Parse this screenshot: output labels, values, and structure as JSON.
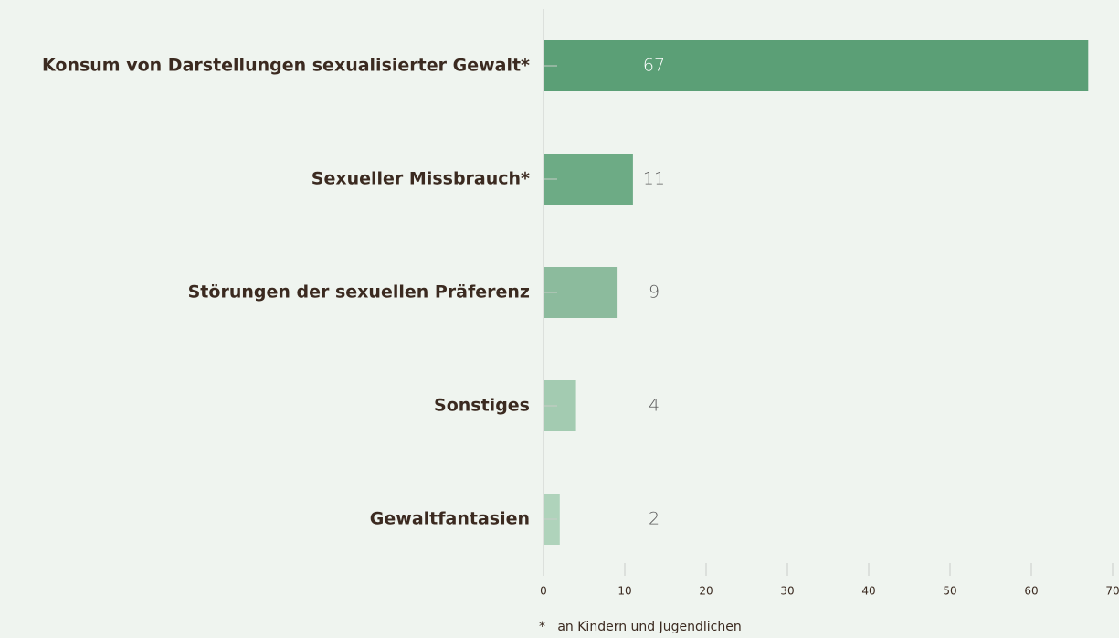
{
  "chart_data": {
    "type": "bar",
    "orientation": "horizontal",
    "categories": [
      "Konsum von Darstellungen sexualisierter Gewalt*",
      "Sexueller Missbrauch*",
      "Störungen der sexuellen Präferenz",
      "Sonstiges",
      "Gewaltfantasien"
    ],
    "values": [
      67,
      11,
      9,
      4,
      2
    ],
    "colors": [
      "#5b9f76",
      "#6dab85",
      "#8cbb9d",
      "#a3cbb1",
      "#afd3bb"
    ],
    "xlim": [
      0,
      70
    ],
    "xticks": [
      0,
      10,
      20,
      30,
      40,
      50,
      60,
      70
    ],
    "footnote": "*   an Kindern und Jugendlichen"
  }
}
